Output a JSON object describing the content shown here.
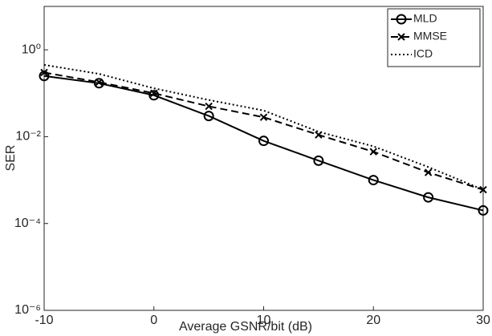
{
  "chart_data": {
    "type": "line",
    "x_label": "Average GSNR/bit (dB)",
    "y_label": "SER",
    "x": [
      -10,
      -5,
      0,
      5,
      10,
      15,
      20,
      25,
      30
    ],
    "series": [
      {
        "name": "MLD",
        "color": "#000000",
        "line_style": "solid",
        "marker": "o",
        "values": [
          0.25,
          0.17,
          0.09,
          0.03,
          0.008,
          0.0028,
          0.001,
          0.0004,
          0.0002
        ]
      },
      {
        "name": "MMSE",
        "color": "#000000",
        "line_style": "dashed",
        "marker": "x",
        "values": [
          0.3,
          0.18,
          0.1,
          0.05,
          0.028,
          0.011,
          0.0045,
          0.0015,
          0.0006
        ]
      },
      {
        "name": "ICD",
        "color": "#000000",
        "line_style": "dotted",
        "marker": "none",
        "values": [
          0.45,
          0.28,
          0.13,
          0.07,
          0.04,
          0.013,
          0.006,
          0.002,
          0.0006
        ]
      }
    ],
    "xlim": [
      -10,
      30
    ],
    "xticks": [
      -10,
      0,
      10,
      20,
      30
    ],
    "ylim": [
      1e-06,
      10
    ],
    "y_scale": "log",
    "yticks": [
      {
        "value": 1,
        "label": "10⁰"
      },
      {
        "value": 0.01,
        "label": "10⁻²"
      },
      {
        "value": 0.0001,
        "label": "10⁻⁴"
      },
      {
        "value": 1e-06,
        "label": "10⁻⁶"
      }
    ],
    "legend": "upper right"
  }
}
